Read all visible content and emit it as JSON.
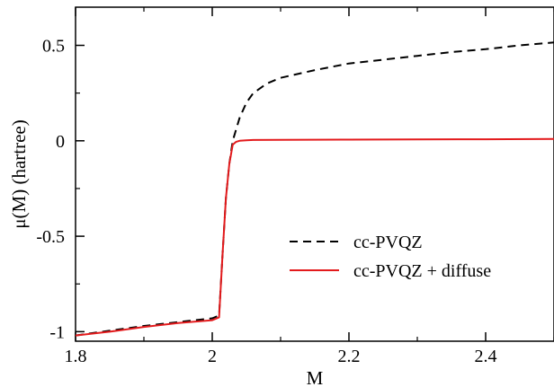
{
  "chart_data": {
    "type": "line",
    "title": "",
    "xlabel": "M",
    "ylabel": "μ(M)  (hartree)",
    "xlim": [
      1.8,
      2.5
    ],
    "ylim": [
      -1.05,
      0.7
    ],
    "x_ticks": [
      1.8,
      2.0,
      2.2,
      2.4
    ],
    "x_tick_labels": [
      "1.8",
      "2",
      "2.2",
      "2.4"
    ],
    "y_ticks": [
      -1.0,
      -0.5,
      0.0,
      0.5
    ],
    "y_tick_labels": [
      "-1",
      "-0.5",
      "0",
      "0.5"
    ],
    "grid": false,
    "legend_position": "lower-right",
    "series": [
      {
        "name": "cc-PVQZ",
        "color": "#000000",
        "dash": "dashed",
        "x": [
          1.8,
          1.85,
          1.9,
          1.95,
          2.0,
          2.01,
          2.015,
          2.02,
          2.025,
          2.03,
          2.035,
          2.04,
          2.05,
          2.06,
          2.08,
          2.1,
          2.15,
          2.2,
          2.25,
          2.3,
          2.35,
          2.4,
          2.45,
          2.5
        ],
        "values": [
          -1.02,
          -0.995,
          -0.97,
          -0.95,
          -0.93,
          -0.915,
          -0.6,
          -0.3,
          -0.12,
          0.0,
          0.06,
          0.12,
          0.2,
          0.25,
          0.3,
          0.33,
          0.37,
          0.405,
          0.425,
          0.445,
          0.465,
          0.48,
          0.5,
          0.515
        ]
      },
      {
        "name": "cc-PVQZ + diffuse",
        "color": "#e31a1c",
        "dash": "solid",
        "x": [
          1.8,
          1.85,
          1.9,
          1.95,
          2.0,
          2.01,
          2.015,
          2.02,
          2.025,
          2.03,
          2.035,
          2.04,
          2.05,
          2.06,
          2.1,
          2.2,
          2.3,
          2.4,
          2.5
        ],
        "values": [
          -1.02,
          -1.0,
          -0.975,
          -0.955,
          -0.94,
          -0.925,
          -0.6,
          -0.3,
          -0.12,
          -0.02,
          -0.005,
          0.0,
          0.003,
          0.004,
          0.005,
          0.006,
          0.007,
          0.008,
          0.01
        ]
      }
    ]
  }
}
